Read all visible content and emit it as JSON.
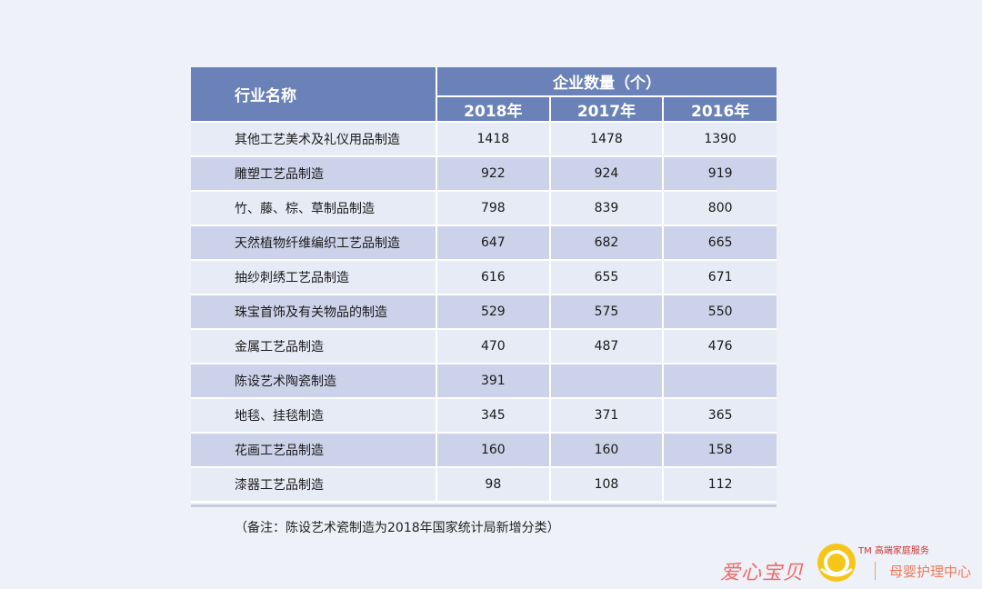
{
  "chart_data": {
    "type": "table",
    "header": {
      "name_col": "行业名称",
      "group": "企业数量（个）",
      "years": [
        "2018年",
        "2017年",
        "2016年"
      ]
    },
    "rows": [
      {
        "name": "其他工艺美术及礼仪用品制造",
        "values": [
          "1418",
          "1478",
          "1390"
        ]
      },
      {
        "name": "雕塑工艺品制造",
        "values": [
          "922",
          "924",
          "919"
        ]
      },
      {
        "name": "竹、藤、棕、草制品制造",
        "values": [
          "798",
          "839",
          "800"
        ]
      },
      {
        "name": "天然植物纤维编织工艺品制造",
        "values": [
          "647",
          "682",
          "665"
        ]
      },
      {
        "name": "抽纱刺绣工艺品制造",
        "values": [
          "616",
          "655",
          "671"
        ]
      },
      {
        "name": "珠宝首饰及有关物品的制造",
        "values": [
          "529",
          "575",
          "550"
        ]
      },
      {
        "name": "金属工艺品制造",
        "values": [
          "470",
          "487",
          "476"
        ]
      },
      {
        "name": "陈设艺术陶瓷制造",
        "values": [
          "391",
          "",
          ""
        ]
      },
      {
        "name": "地毯、挂毯制造",
        "values": [
          "345",
          "371",
          "365"
        ]
      },
      {
        "name": "花画工艺品制造",
        "values": [
          "160",
          "160",
          "158"
        ]
      },
      {
        "name": "漆器工艺品制造",
        "values": [
          "98",
          "108",
          "112"
        ]
      }
    ],
    "note": "（备注：陈设艺术瓷制造为2018年国家统计局新增分类）"
  },
  "watermark": {
    "brand": "爱心宝贝",
    "tm": "TM 高端家庭服务",
    "sub": "母婴护理中心"
  },
  "colors": {
    "header_bg": "#6b82b8",
    "row_light": "#e7ebf6",
    "row_dark": "#ccd2e9",
    "page_bg": "#eef2f8"
  }
}
